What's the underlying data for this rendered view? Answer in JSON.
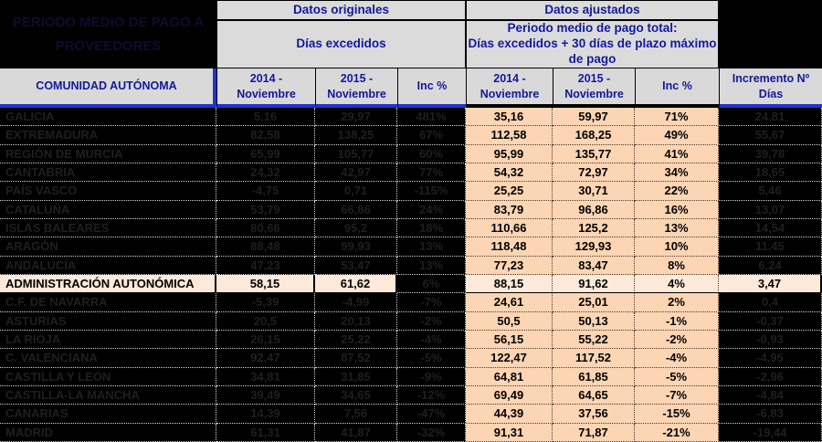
{
  "title": {
    "line1": "PERIODO MEDIO DE PAGO A",
    "line2": "PROVEEDORES"
  },
  "groups": {
    "original": {
      "title": "Datos originales",
      "subtitle": "Días excedidos"
    },
    "adjusted": {
      "title": "Datos ajustados",
      "subtitle": "Periodo medio de pago total:\nDías excedidos + 30 días de plazo máximo\nde pago"
    }
  },
  "columns": {
    "name": "COMUNIDAD AUTÓNOMA",
    "y2014": "2014 - Noviembre",
    "y2015": "2015 - Noviembre",
    "inc": "Inc %",
    "increment_days": "Incremento Nº Días"
  },
  "colors": {
    "header_text_navy": "#13189d",
    "header_bg_gray": "#D9D9D9",
    "adjusted_cell_bg": "#FCD5B4",
    "highlight_row_bg": "#FDE9D9",
    "header_underline_blue": "#2233cc",
    "hidden_cell_bg": "#000000"
  },
  "rows": [
    {
      "name": "GALICIA",
      "orig_2014": "5,16",
      "orig_2015": "29,97",
      "orig_inc": "481%",
      "adj_2014": "35,16",
      "adj_2015": "59,97",
      "adj_inc": "71%",
      "incr_days": "24,81",
      "highlight": false
    },
    {
      "name": "EXTREMADURA",
      "orig_2014": "82,58",
      "orig_2015": "138,25",
      "orig_inc": "67%",
      "adj_2014": "112,58",
      "adj_2015": "168,25",
      "adj_inc": "49%",
      "incr_days": "55,67",
      "highlight": false
    },
    {
      "name": "REGIÓN DE MURCIA",
      "orig_2014": "65,99",
      "orig_2015": "105,77",
      "orig_inc": "60%",
      "adj_2014": "95,99",
      "adj_2015": "135,77",
      "adj_inc": "41%",
      "incr_days": "39,78",
      "highlight": false
    },
    {
      "name": "CANTABRIA",
      "orig_2014": "24,32",
      "orig_2015": "42,97",
      "orig_inc": "77%",
      "adj_2014": "54,32",
      "adj_2015": "72,97",
      "adj_inc": "34%",
      "incr_days": "18,65",
      "highlight": false
    },
    {
      "name": "PAÍS VASCO",
      "orig_2014": "-4,75",
      "orig_2015": "0,71",
      "orig_inc": "-115%",
      "adj_2014": "25,25",
      "adj_2015": "30,71",
      "adj_inc": "22%",
      "incr_days": "5,46",
      "highlight": false
    },
    {
      "name": "CATALUÑA",
      "orig_2014": "53,79",
      "orig_2015": "66,86",
      "orig_inc": "24%",
      "adj_2014": "83,79",
      "adj_2015": "96,86",
      "adj_inc": "16%",
      "incr_days": "13,07",
      "highlight": false
    },
    {
      "name": "ISLAS BALEARES",
      "orig_2014": "80,66",
      "orig_2015": "95,2",
      "orig_inc": "18%",
      "adj_2014": "110,66",
      "adj_2015": "125,2",
      "adj_inc": "13%",
      "incr_days": "14,54",
      "highlight": false
    },
    {
      "name": "ARAGÓN",
      "orig_2014": "88,48",
      "orig_2015": "99,93",
      "orig_inc": "13%",
      "adj_2014": "118,48",
      "adj_2015": "129,93",
      "adj_inc": "10%",
      "incr_days": "11,45",
      "highlight": false
    },
    {
      "name": "ANDALUCÍA",
      "orig_2014": "47,23",
      "orig_2015": "53,47",
      "orig_inc": "13%",
      "adj_2014": "77,23",
      "adj_2015": "83,47",
      "adj_inc": "8%",
      "incr_days": "6,24",
      "highlight": false
    },
    {
      "name": "ADMINISTRACIÓN AUTONÓMICA",
      "orig_2014": "58,15",
      "orig_2015": "61,62",
      "orig_inc": "6%",
      "adj_2014": "88,15",
      "adj_2015": "91,62",
      "adj_inc": "4%",
      "incr_days": "3,47",
      "highlight": true
    },
    {
      "name": "C.F. DE NAVARRA",
      "orig_2014": "-5,39",
      "orig_2015": "-4,99",
      "orig_inc": "-7%",
      "adj_2014": "24,61",
      "adj_2015": "25,01",
      "adj_inc": "2%",
      "incr_days": "0,4",
      "highlight": false
    },
    {
      "name": "ASTURIAS",
      "orig_2014": "20,5",
      "orig_2015": "20,13",
      "orig_inc": "-2%",
      "adj_2014": "50,5",
      "adj_2015": "50,13",
      "adj_inc": "-1%",
      "incr_days": "-0,37",
      "highlight": false
    },
    {
      "name": "LA RIOJA",
      "orig_2014": "26,15",
      "orig_2015": "25,22",
      "orig_inc": "-4%",
      "adj_2014": "56,15",
      "adj_2015": "55,22",
      "adj_inc": "-2%",
      "incr_days": "-0,93",
      "highlight": false
    },
    {
      "name": "C. VALENCIANA",
      "orig_2014": "92,47",
      "orig_2015": "87,52",
      "orig_inc": "-5%",
      "adj_2014": "122,47",
      "adj_2015": "117,52",
      "adj_inc": "-4%",
      "incr_days": "-4,95",
      "highlight": false
    },
    {
      "name": "CASTILLA Y LEÓN",
      "orig_2014": "34,81",
      "orig_2015": "31,85",
      "orig_inc": "-9%",
      "adj_2014": "64,81",
      "adj_2015": "61,85",
      "adj_inc": "-5%",
      "incr_days": "-2,96",
      "highlight": false
    },
    {
      "name": "CASTILLA-LA MANCHA",
      "orig_2014": "39,49",
      "orig_2015": "34,65",
      "orig_inc": "-12%",
      "adj_2014": "69,49",
      "adj_2015": "64,65",
      "adj_inc": "-7%",
      "incr_days": "-4,84",
      "highlight": false
    },
    {
      "name": "CANARIAS",
      "orig_2014": "14,39",
      "orig_2015": "7,56",
      "orig_inc": "-47%",
      "adj_2014": "44,39",
      "adj_2015": "37,56",
      "adj_inc": "-15%",
      "incr_days": "-6,83",
      "highlight": false
    },
    {
      "name": "MADRID",
      "orig_2014": "61,31",
      "orig_2015": "41,87",
      "orig_inc": "-32%",
      "adj_2014": "91,31",
      "adj_2015": "71,87",
      "adj_inc": "-21%",
      "incr_days": "-19,44",
      "highlight": false
    }
  ]
}
